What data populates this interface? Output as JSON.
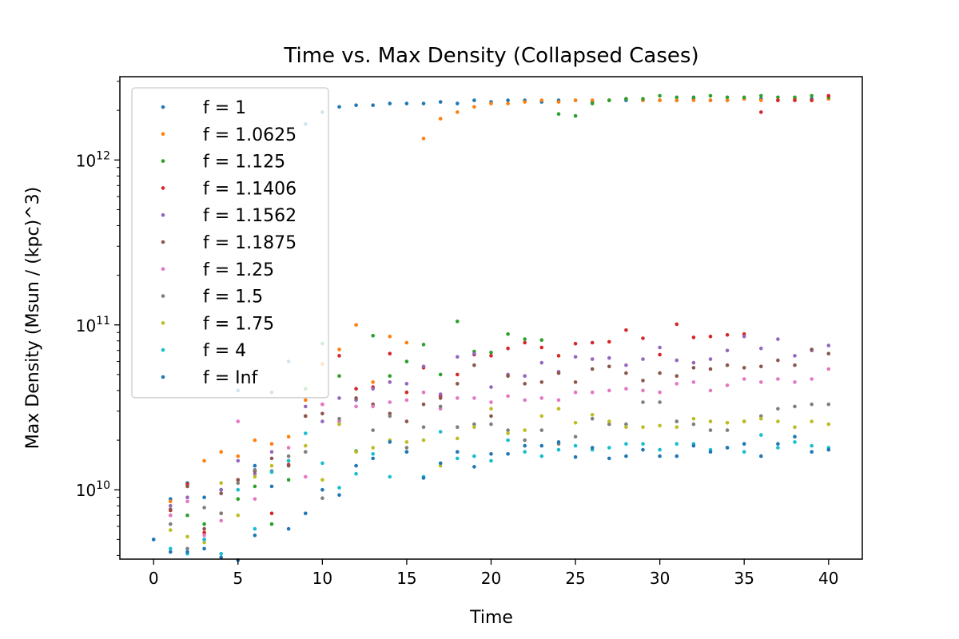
{
  "chart_data": {
    "type": "scatter",
    "title": "Time vs. Max Density (Collapsed Cases)",
    "xlabel": "Time",
    "ylabel": "Max Density (Msun / (kpc)^3)",
    "xlim": [
      -2,
      42
    ],
    "ylim": [
      3800000000.0,
      3200000000000.0
    ],
    "yscale": "log",
    "x_ticks": [
      0,
      5,
      10,
      15,
      20,
      25,
      30,
      35,
      40
    ],
    "x_tick_labels": [
      "0",
      "5",
      "10",
      "15",
      "20",
      "25",
      "30",
      "35",
      "40"
    ],
    "y_major_ticks": [
      {
        "value": 10000000000.0,
        "base": "10",
        "exp": "10"
      },
      {
        "value": 100000000000.0,
        "base": "10",
        "exp": "11"
      },
      {
        "value": 1000000000000.0,
        "base": "10",
        "exp": "12"
      }
    ],
    "grid": false,
    "legend_position": "upper-left",
    "series": [
      {
        "name": "f = 1",
        "color": "#1f77b4",
        "x": [
          0,
          1,
          2,
          3,
          4,
          5,
          6,
          7,
          8,
          9,
          10,
          11,
          12,
          13,
          14,
          15,
          16,
          17,
          18,
          19,
          20,
          21,
          22,
          23,
          24,
          25,
          26,
          27,
          28,
          29,
          30,
          31,
          32,
          33,
          34,
          35,
          36,
          37,
          38,
          39,
          40
        ],
        "y": [
          5000000000.0,
          8800000000.0,
          11000000000.0,
          9000000000.0,
          10000000000.0,
          40000000000.0,
          14000000000.0,
          39000000000.0,
          60000000000.0,
          1650000000000.0,
          1950000000000.0,
          2100000000000.0,
          2150000000000.0,
          2150000000000.0,
          2200000000000.0,
          2200000000000.0,
          2200000000000.0,
          2250000000000.0,
          2200000000000.0,
          2300000000000.0,
          2250000000000.0,
          2300000000000.0,
          2300000000000.0,
          2250000000000.0,
          2300000000000.0,
          2300000000000.0,
          2250000000000.0,
          2300000000000.0,
          2300000000000.0,
          2300000000000.0,
          2300000000000.0,
          2300000000000.0,
          2350000000000.0,
          2300000000000.0,
          2300000000000.0,
          2350000000000.0,
          2350000000000.0,
          2300000000000.0,
          2350000000000.0,
          2350000000000.0,
          2350000000000.0
        ]
      },
      {
        "name": "f = 1.0625",
        "color": "#ff7f0e",
        "x": [
          1,
          2,
          3,
          4,
          5,
          6,
          7,
          8,
          9,
          10,
          11,
          12,
          13,
          14,
          15,
          16,
          17,
          18,
          19,
          20,
          21,
          22,
          23,
          24,
          25,
          26,
          27,
          28,
          29,
          30,
          31,
          32,
          33,
          34,
          35,
          36,
          37,
          38,
          39,
          40
        ],
        "y": [
          8500000000.0,
          10500000000.0,
          15000000000.0,
          17000000000.0,
          16000000000.0,
          20000000000.0,
          19000000000.0,
          21000000000.0,
          35000000000.0,
          58000000000.0,
          71000000000.0,
          100000000000.0,
          45000000000.0,
          85000000000.0,
          78000000000.0,
          1350000000000.0,
          1780000000000.0,
          1950000000000.0,
          2100000000000.0,
          2200000000000.0,
          2200000000000.0,
          2250000000000.0,
          2300000000000.0,
          2250000000000.0,
          2300000000000.0,
          2300000000000.0,
          2300000000000.0,
          2350000000000.0,
          2300000000000.0,
          2300000000000.0,
          2300000000000.0,
          2300000000000.0,
          2300000000000.0,
          2300000000000.0,
          2350000000000.0,
          2300000000000.0,
          2300000000000.0,
          2350000000000.0,
          2300000000000.0,
          2350000000000.0
        ]
      },
      {
        "name": "f = 1.125",
        "color": "#2ca02c",
        "x": [
          1,
          2,
          3,
          4,
          5,
          6,
          7,
          8,
          9,
          10,
          11,
          12,
          13,
          14,
          15,
          16,
          17,
          18,
          19,
          20,
          21,
          22,
          23,
          24,
          25,
          26,
          27,
          28,
          29,
          30,
          31,
          32,
          33,
          34,
          35,
          36,
          37,
          38,
          39,
          40
        ],
        "y": [
          7000000000.0,
          7000000000.0,
          6200000000.0,
          10000000000.0,
          8800000000.0,
          10500000000.0,
          6200000000.0,
          11500000000.0,
          41000000000.0,
          77000000000.0,
          49000000000.0,
          17200000000.0,
          86000000000.0,
          49000000000.0,
          60000000000.0,
          76000000000.0,
          50000000000.0,
          105000000000.0,
          69000000000.0,
          68000000000.0,
          88000000000.0,
          82000000000.0,
          81000000000.0,
          1900000000000.0,
          1850000000000.0,
          2200000000000.0,
          2300000000000.0,
          2350000000000.0,
          2350000000000.0,
          2450000000000.0,
          2400000000000.0,
          2400000000000.0,
          2450000000000.0,
          2400000000000.0,
          2400000000000.0,
          2450000000000.0,
          2400000000000.0,
          2400000000000.0,
          2450000000000.0,
          2400000000000.0
        ]
      },
      {
        "name": "f = 1.1406",
        "color": "#d62728",
        "x": [
          1,
          2,
          3,
          4,
          5,
          6,
          7,
          8,
          9,
          10,
          11,
          12,
          13,
          14,
          15,
          16,
          17,
          18,
          19,
          20,
          21,
          22,
          23,
          24,
          25,
          26,
          27,
          28,
          29,
          30,
          31,
          32,
          33,
          34,
          35,
          36,
          37,
          38,
          39,
          40
        ],
        "y": [
          7500000000.0,
          10800000000.0,
          5500000000.0,
          7200000000.0,
          11500000000.0,
          13000000000.0,
          7200000000.0,
          14200000000.0,
          28000000000.0,
          33000000000.0,
          65000000000.0,
          41000000000.0,
          42000000000.0,
          67000000000.0,
          39000000000.0,
          55000000000.0,
          37000000000.0,
          50000000000.0,
          66000000000.0,
          65000000000.0,
          72000000000.0,
          78000000000.0,
          73000000000.0,
          65000000000.0,
          77000000000.0,
          78000000000.0,
          79000000000.0,
          93000000000.0,
          83000000000.0,
          66000000000.0,
          101000000000.0,
          84000000000.0,
          85000000000.0,
          87000000000.0,
          88000000000.0,
          1950000000000.0,
          2300000000000.0,
          2300000000000.0,
          2300000000000.0,
          2450000000000.0
        ]
      },
      {
        "name": "f = 1.1562",
        "color": "#9467bd",
        "x": [
          1,
          2,
          3,
          4,
          5,
          6,
          7,
          8,
          9,
          10,
          11,
          12,
          13,
          14,
          15,
          16,
          17,
          18,
          19,
          20,
          21,
          22,
          23,
          24,
          25,
          26,
          27,
          28,
          29,
          30,
          31,
          32,
          33,
          34,
          35,
          36,
          37,
          38,
          39,
          40
        ],
        "y": [
          8000000000.0,
          9000000000.0,
          5000000000.0,
          10000000000.0,
          15000000000.0,
          12500000000.0,
          17000000000.0,
          15000000000.0,
          32000000000.0,
          26000000000.0,
          36000000000.0,
          35000000000.0,
          41000000000.0,
          45000000000.0,
          44000000000.0,
          56000000000.0,
          38000000000.0,
          64000000000.0,
          67000000000.0,
          42000000000.0,
          50000000000.0,
          49000000000.0,
          59000000000.0,
          52000000000.0,
          64000000000.0,
          62000000000.0,
          63000000000.0,
          57000000000.0,
          62000000000.0,
          73000000000.0,
          61000000000.0,
          59000000000.0,
          62000000000.0,
          70000000000.0,
          85000000000.0,
          72000000000.0,
          82000000000.0,
          65000000000.0,
          70000000000.0,
          75000000000.0
        ]
      },
      {
        "name": "f = 1.1875",
        "color": "#8c564b",
        "x": [
          1,
          2,
          3,
          4,
          5,
          6,
          7,
          8,
          9,
          10,
          11,
          12,
          13,
          14,
          15,
          16,
          17,
          18,
          19,
          20,
          21,
          22,
          23,
          24,
          25,
          26,
          27,
          28,
          29,
          30,
          31,
          32,
          33,
          34,
          35,
          36,
          37,
          38,
          39,
          40
        ],
        "y": [
          7600000000.0,
          10500000000.0,
          5800000000.0,
          9500000000.0,
          11500000000.0,
          13000000000.0,
          15500000000.0,
          14000000000.0,
          28000000000.0,
          29000000000.0,
          26000000000.0,
          36000000000.0,
          33000000000.0,
          29000000000.0,
          26000000000.0,
          33000000000.0,
          36000000000.0,
          44000000000.0,
          57000000000.0,
          28000000000.0,
          49000000000.0,
          44000000000.0,
          45000000000.0,
          51000000000.0,
          45000000000.0,
          54000000000.0,
          56000000000.0,
          51000000000.0,
          46000000000.0,
          51000000000.0,
          49000000000.0,
          55000000000.0,
          54000000000.0,
          57000000000.0,
          55000000000.0,
          56000000000.0,
          61000000000.0,
          57000000000.0,
          71000000000.0,
          67000000000.0
        ]
      },
      {
        "name": "f = 1.25",
        "color": "#e377c2",
        "x": [
          1,
          2,
          3,
          4,
          5,
          6,
          7,
          8,
          9,
          10,
          11,
          12,
          13,
          14,
          15,
          16,
          17,
          18,
          19,
          20,
          21,
          22,
          23,
          24,
          25,
          26,
          27,
          28,
          29,
          30,
          31,
          32,
          33,
          34,
          35,
          36,
          37,
          38,
          39,
          40
        ],
        "y": [
          7000000000.0,
          8500000000.0,
          5300000000.0,
          6500000000.0,
          26000000000.0,
          8800000000.0,
          13000000000.0,
          18000000000.0,
          12000000000.0,
          33000000000.0,
          26000000000.0,
          32000000000.0,
          32000000000.0,
          34000000000.0,
          35000000000.0,
          39000000000.0,
          31000000000.0,
          36000000000.0,
          36000000000.0,
          34000000000.0,
          37000000000.0,
          35000000000.0,
          36000000000.0,
          35000000000.0,
          39000000000.0,
          39000000000.0,
          40000000000.0,
          41000000000.0,
          40000000000.0,
          39000000000.0,
          44000000000.0,
          45000000000.0,
          40000000000.0,
          43000000000.0,
          47000000000.0,
          45000000000.0,
          47000000000.0,
          45000000000.0,
          47000000000.0,
          54000000000.0
        ]
      },
      {
        "name": "f = 1.5",
        "color": "#7f7f7f",
        "x": [
          1,
          2,
          3,
          4,
          5,
          6,
          7,
          8,
          9,
          10,
          11,
          12,
          13,
          14,
          15,
          16,
          17,
          18,
          19,
          20,
          21,
          22,
          23,
          24,
          25,
          26,
          27,
          28,
          29,
          30,
          31,
          32,
          33,
          34,
          35,
          36,
          37,
          38,
          39,
          40
        ],
        "y": [
          6200000000.0,
          4400000000.0,
          7800000000.0,
          7200000000.0,
          11000000000.0,
          13200000000.0,
          13000000000.0,
          16000000000.0,
          17000000000.0,
          8900000000.0,
          27000000000.0,
          17000000000.0,
          23000000000.0,
          28000000000.0,
          18000000000.0,
          24000000000.0,
          32000000000.0,
          24000000000.0,
          25000000000.0,
          25000000000.0,
          23000000000.0,
          20000000000.0,
          23000000000.0,
          19000000000.0,
          21000000000.0,
          27000000000.0,
          25000000000.0,
          25000000000.0,
          34000000000.0,
          34000000000.0,
          26000000000.0,
          25000000000.0,
          23000000000.0,
          23000000000.0,
          26000000000.0,
          28000000000.0,
          31000000000.0,
          32000000000.0,
          33000000000.0,
          33000000000.0
        ]
      },
      {
        "name": "f = 1.75",
        "color": "#bcbd22",
        "x": [
          1,
          2,
          3,
          4,
          5,
          6,
          7,
          8,
          9,
          10,
          11,
          12,
          13,
          14,
          15,
          16,
          17,
          18,
          19,
          20,
          21,
          22,
          23,
          24,
          25,
          26,
          27,
          28,
          29,
          30,
          31,
          32,
          33,
          34,
          35,
          36,
          37,
          38,
          39,
          40
        ],
        "y": [
          5700000000.0,
          5200000000.0,
          4800000000.0,
          11000000000.0,
          7000000000.0,
          12000000000.0,
          14000000000.0,
          15000000000.0,
          18500000000.0,
          11500000000.0,
          25000000000.0,
          17000000000.0,
          18000000000.0,
          20000000000.0,
          19500000000.0,
          20000000000.0,
          14000000000.0,
          20500000000.0,
          24000000000.0,
          31000000000.0,
          22000000000.0,
          23000000000.0,
          28000000000.0,
          31000000000.0,
          25500000000.0,
          28500000000.0,
          26000000000.0,
          24000000000.0,
          24000000000.0,
          24500000000.0,
          24000000000.0,
          27000000000.0,
          26000000000.0,
          25500000000.0,
          26000000000.0,
          27000000000.0,
          26000000000.0,
          24000000000.0,
          26000000000.0,
          25000000000.0
        ]
      },
      {
        "name": "f = 4",
        "color": "#17becf",
        "x": [
          1,
          2,
          3,
          4,
          5,
          6,
          7,
          8,
          9,
          10,
          11,
          12,
          13,
          14,
          15,
          16,
          17,
          18,
          19,
          20,
          21,
          22,
          23,
          24,
          25,
          26,
          27,
          28,
          29,
          30,
          31,
          32,
          33,
          34,
          35,
          36,
          37,
          38,
          39,
          40
        ],
        "y": [
          4400000000.0,
          4100000000.0,
          5000000000.0,
          4100000000.0,
          10000000000.0,
          5800000000.0,
          12800000000.0,
          15000000000.0,
          22000000000.0,
          14500000000.0,
          10300000000.0,
          12500000000.0,
          16500000000.0,
          12000000000.0,
          17000000000.0,
          12000000000.0,
          22500000000.0,
          15500000000.0,
          16000000000.0,
          15000000000.0,
          20000000000.0,
          17000000000.0,
          16000000000.0,
          17500000000.0,
          18500000000.0,
          17500000000.0,
          18000000000.0,
          19000000000.0,
          19000000000.0,
          17500000000.0,
          19000000000.0,
          19000000000.0,
          17500000000.0,
          18000000000.0,
          17000000000.0,
          21500000000.0,
          18000000000.0,
          19500000000.0,
          18500000000.0,
          18000000000.0
        ]
      },
      {
        "name": "f = Inf",
        "color": "#1f77b4",
        "x": [
          0,
          1,
          2,
          3,
          4,
          5,
          6,
          7,
          8,
          9,
          10,
          11,
          12,
          13,
          14,
          15,
          16,
          17,
          18,
          19,
          20,
          21,
          22,
          23,
          24,
          25,
          26,
          27,
          28,
          29,
          30,
          31,
          32,
          33,
          34,
          35,
          36,
          37,
          38,
          39,
          40
        ],
        "y": [
          5000000000.0,
          4200000000.0,
          4200000000.0,
          4400000000.0,
          3900000000.0,
          3750000000.0,
          5300000000.0,
          10500000000.0,
          5800000000.0,
          7200000000.0,
          10000000000.0,
          9300000000.0,
          14000000000.0,
          15500000000.0,
          19500000000.0,
          17000000000.0,
          11800000000.0,
          14500000000.0,
          17000000000.0,
          13800000000.0,
          16500000000.0,
          16500000000.0,
          18500000000.0,
          18500000000.0,
          19500000000.0,
          15800000000.0,
          18000000000.0,
          15500000000.0,
          16000000000.0,
          17500000000.0,
          16000000000.0,
          16000000000.0,
          18500000000.0,
          17000000000.0,
          18000000000.0,
          19000000000.0,
          16000000000.0,
          19000000000.0,
          21000000000.0,
          17000000000.0,
          17500000000.0
        ]
      }
    ]
  }
}
